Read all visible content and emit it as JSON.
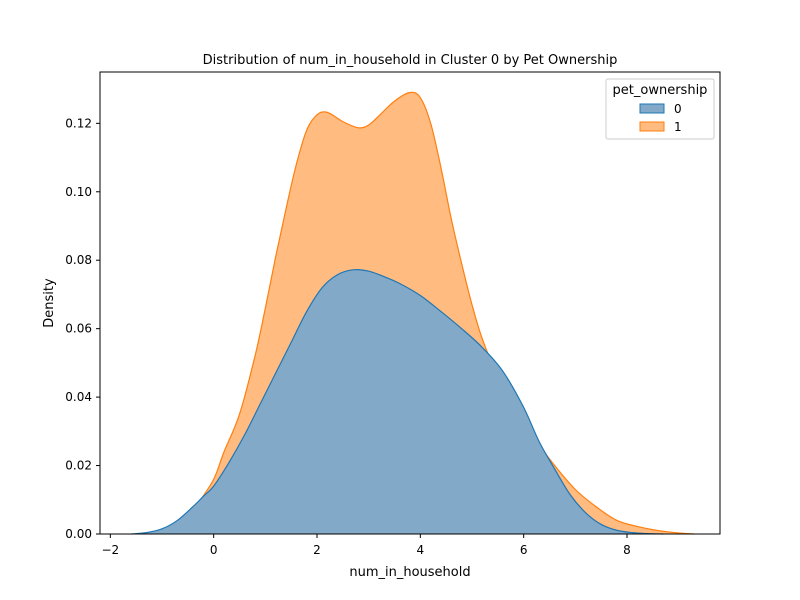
{
  "chart_data": {
    "type": "area",
    "title": "Distribution of num_in_household in Cluster 0 by Pet Ownership",
    "xlabel": "num_in_household",
    "ylabel": "Density",
    "xlim": [
      -2.2,
      9.8
    ],
    "ylim": [
      0,
      0.135
    ],
    "xticks": [
      -2,
      0,
      2,
      4,
      6,
      8
    ],
    "yticks": [
      0.0,
      0.02,
      0.04,
      0.06,
      0.08,
      0.1,
      0.12
    ],
    "xtick_labels": [
      "−2",
      "0",
      "2",
      "4",
      "6",
      "8"
    ],
    "ytick_labels": [
      "0.00",
      "0.02",
      "0.04",
      "0.06",
      "0.08",
      "0.10",
      "0.12"
    ],
    "grid": false,
    "legend": {
      "title": "pet_ownership",
      "placement": "top-right"
    },
    "series": [
      {
        "name": "1",
        "color": "#ff7f0e",
        "fill": "#ffbb80",
        "x": [
          -1.3,
          -1.0,
          -0.8,
          -0.5,
          -0.3,
          0.0,
          0.2,
          0.5,
          0.8,
          1.0,
          1.2,
          1.4,
          1.6,
          1.8,
          2.0,
          2.2,
          2.5,
          2.8,
          3.0,
          3.2,
          3.5,
          3.8,
          4.0,
          4.2,
          4.4,
          4.6,
          4.8,
          5.0,
          5.2,
          5.5,
          5.8,
          6.0,
          6.3,
          6.6,
          7.0,
          7.4,
          7.8,
          8.2,
          8.6,
          9.0,
          9.3
        ],
        "y": [
          0.0,
          0.001,
          0.002,
          0.005,
          0.009,
          0.016,
          0.024,
          0.035,
          0.052,
          0.066,
          0.081,
          0.095,
          0.108,
          0.118,
          0.1225,
          0.1232,
          0.1205,
          0.1187,
          0.1195,
          0.1222,
          0.1265,
          0.129,
          0.1275,
          0.12,
          0.107,
          0.092,
          0.079,
          0.067,
          0.057,
          0.046,
          0.038,
          0.033,
          0.026,
          0.02,
          0.013,
          0.008,
          0.004,
          0.0022,
          0.001,
          0.0003,
          0.0
        ]
      },
      {
        "name": "0",
        "color": "#1f77b4",
        "fill": "#82a9c8",
        "x": [
          -1.6,
          -1.3,
          -1.0,
          -0.7,
          -0.4,
          -0.2,
          0.0,
          0.3,
          0.6,
          0.9,
          1.2,
          1.5,
          1.8,
          2.1,
          2.4,
          2.7,
          3.0,
          3.3,
          3.6,
          4.0,
          4.4,
          4.8,
          5.2,
          5.6,
          6.0,
          6.3,
          6.6,
          6.9,
          7.2,
          7.5,
          7.8,
          8.1,
          8.4,
          8.7
        ],
        "y": [
          0.0,
          0.0004,
          0.0015,
          0.004,
          0.008,
          0.011,
          0.014,
          0.021,
          0.029,
          0.038,
          0.047,
          0.056,
          0.065,
          0.072,
          0.0758,
          0.0772,
          0.0768,
          0.0752,
          0.0732,
          0.0697,
          0.065,
          0.06,
          0.0545,
          0.0475,
          0.037,
          0.027,
          0.019,
          0.0115,
          0.0062,
          0.0028,
          0.0011,
          0.0004,
          0.0001,
          0.0
        ]
      }
    ]
  }
}
